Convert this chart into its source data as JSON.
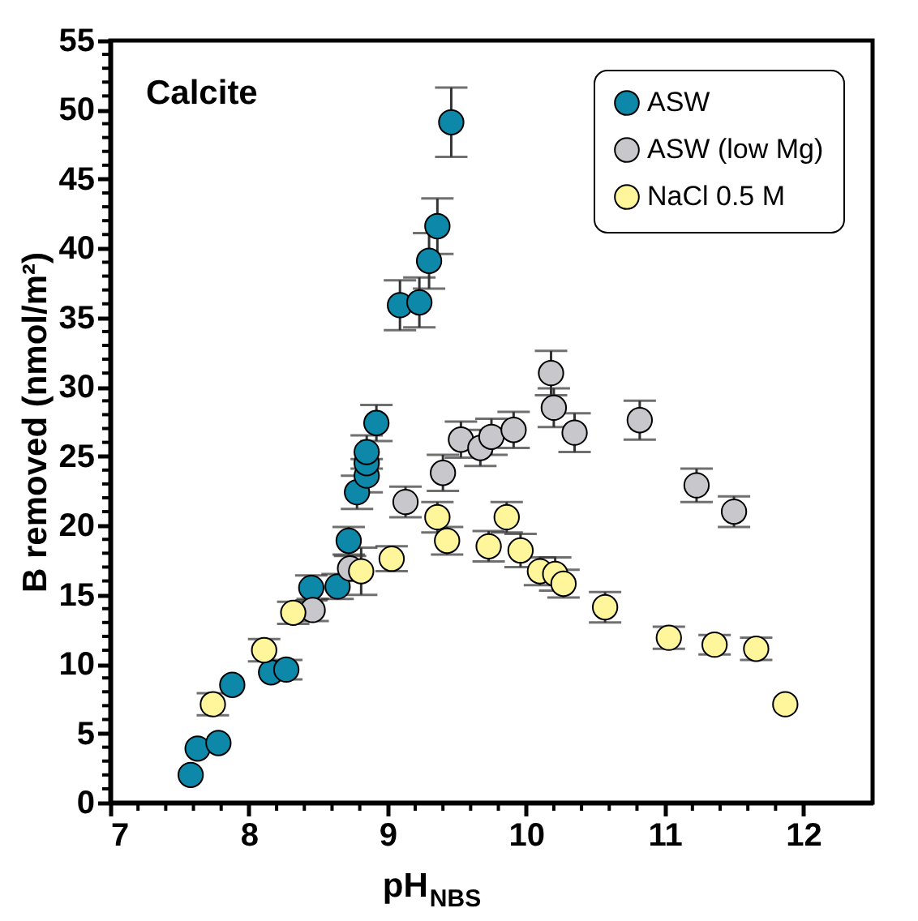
{
  "chart_data": {
    "type": "scatter",
    "xlabel": "pH$_{NBS}$",
    "ylabel": "B removed (nmol/m²)",
    "annotations": [
      "Calcite"
    ],
    "xlim": [
      7,
      12.5
    ],
    "xticks": [
      7,
      8,
      9,
      10,
      11,
      12
    ],
    "ylim": [
      0,
      55
    ],
    "yticks": [
      0,
      5,
      10,
      15,
      20,
      25,
      30,
      35,
      40,
      45,
      50,
      55
    ],
    "grid": false,
    "legend": "top right",
    "marker": "circle",
    "series": [
      {
        "name": "ASW",
        "color": "#0e88a8",
        "x": [
          7.58,
          7.63,
          7.78,
          7.88,
          8.16,
          8.27,
          8.45,
          8.64,
          8.72,
          8.78,
          8.85,
          8.85,
          8.85,
          8.92,
          9.09,
          9.23,
          9.3,
          9.36,
          9.46
        ],
        "values": [
          2.0,
          3.9,
          4.3,
          8.5,
          9.4,
          9.6,
          15.5,
          15.6,
          18.9,
          22.4,
          23.6,
          24.5,
          25.3,
          27.4,
          35.9,
          36.1,
          39.1,
          41.6,
          49.1
        ],
        "errors": [
          null,
          null,
          null,
          null,
          null,
          0.7,
          0.9,
          0.9,
          1.0,
          1.2,
          1.2,
          null,
          1.2,
          1.3,
          1.8,
          1.8,
          2.0,
          2.0,
          2.5
        ]
      },
      {
        "name": "ASW (low Mg)",
        "color": "#c8c8cc",
        "x": [
          8.46,
          8.73,
          9.13,
          9.4,
          9.53,
          9.67,
          9.75,
          9.91,
          10.18,
          10.2,
          10.35,
          10.82,
          11.23,
          11.5
        ],
        "values": [
          13.9,
          16.9,
          21.7,
          23.8,
          26.2,
          25.6,
          26.4,
          26.9,
          31.0,
          28.5,
          26.7,
          27.6,
          22.9,
          21.0
        ],
        "errors": [
          0.8,
          0.9,
          1.1,
          1.3,
          1.3,
          1.3,
          1.3,
          1.3,
          1.6,
          1.4,
          1.4,
          1.4,
          1.2,
          1.1
        ]
      },
      {
        "name": "NaCl 0.5 M",
        "color": "#fff59a",
        "x": [
          7.74,
          8.11,
          8.32,
          8.81,
          9.03,
          9.36,
          9.43,
          9.73,
          9.86,
          9.96,
          10.1,
          10.21,
          10.27,
          10.57,
          11.03,
          11.36,
          11.66,
          11.87
        ],
        "values": [
          7.1,
          11.0,
          13.7,
          16.7,
          17.6,
          20.6,
          18.9,
          18.5,
          20.6,
          18.2,
          16.7,
          16.5,
          15.8,
          14.1,
          11.9,
          11.4,
          11.1,
          7.1
        ],
        "errors": [
          0.8,
          0.8,
          0.8,
          1.7,
          0.9,
          1.1,
          1.0,
          1.1,
          1.1,
          1.2,
          1.0,
          1.2,
          1.0,
          1.1,
          0.8,
          0.7,
          0.8,
          null
        ]
      }
    ]
  }
}
